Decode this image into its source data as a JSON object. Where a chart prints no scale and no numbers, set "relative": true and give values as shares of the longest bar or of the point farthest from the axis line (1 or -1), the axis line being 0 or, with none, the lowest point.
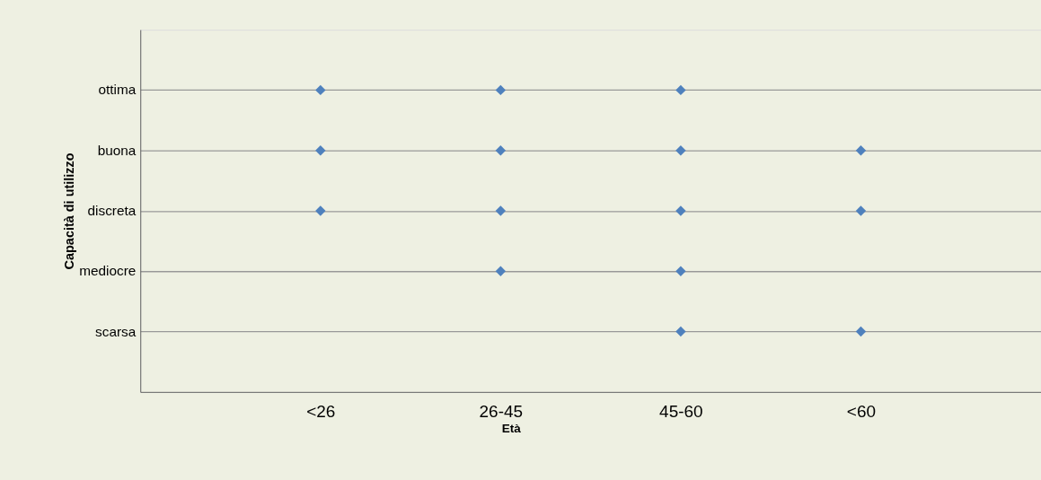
{
  "chart_data": {
    "type": "scatter",
    "xlabel": "Età",
    "ylabel": "Capacità di utilizzo",
    "categories": [
      "<26",
      "26-45",
      "45-60",
      "<60"
    ],
    "series": [
      {
        "color": "#4f81bd",
        "x": [
          "<26",
          "<26",
          "<26",
          "26-45",
          "26-45",
          "26-45",
          "26-45",
          "45-60",
          "45-60",
          "45-60",
          "45-60",
          "45-60",
          "<60",
          "<60",
          "<60"
        ],
        "values": [
          1,
          0.8,
          0.6,
          1,
          0.8,
          0.6,
          0.4,
          1,
          0.8,
          0.6,
          0.4,
          0.2,
          0.8,
          0.6,
          0.2
        ]
      }
    ],
    "relative": true,
    "annotations": [
      "ottima",
      "buona",
      "discreta",
      "mediocre",
      "scarsa"
    ],
    "grid": "y",
    "marker": "diamond"
  }
}
